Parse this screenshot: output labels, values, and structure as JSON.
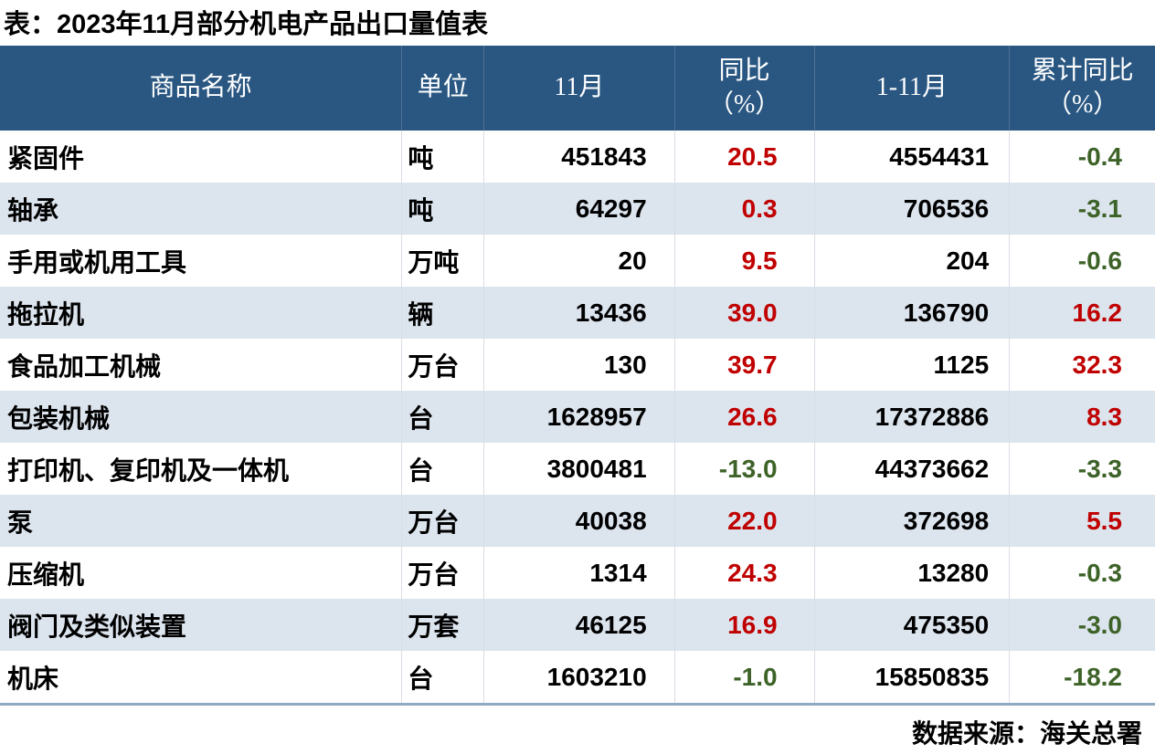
{
  "title": "表：2023年11月部分机电产品出口量值表",
  "source": "数据来源：海关总署",
  "colors": {
    "header_bg": "#2A5782",
    "header_text": "#FFFFFF",
    "alt_row_bg": "#DCE4EE",
    "positive_value": "#C00000",
    "negative_value": "#3E6328",
    "bottom_rule": "#8FA9C2"
  },
  "table": {
    "columns": [
      {
        "label": "商品名称"
      },
      {
        "label": "单位"
      },
      {
        "label": "11月"
      },
      {
        "label": "同比",
        "sub": "（%）"
      },
      {
        "label": "1-11月"
      },
      {
        "label": "累计同比",
        "sub": "（%）"
      }
    ],
    "rows": [
      {
        "name": "紧固件",
        "unit": "吨",
        "nov": "451843",
        "yoy": "20.5",
        "jan_nov": "4554431",
        "cum_yoy": "-0.4"
      },
      {
        "name": "轴承",
        "unit": "吨",
        "nov": "64297",
        "yoy": "0.3",
        "jan_nov": "706536",
        "cum_yoy": "-3.1"
      },
      {
        "name": "手用或机用工具",
        "unit": "万吨",
        "nov": "20",
        "yoy": "9.5",
        "jan_nov": "204",
        "cum_yoy": "-0.6"
      },
      {
        "name": "拖拉机",
        "unit": "辆",
        "nov": "13436",
        "yoy": "39.0",
        "jan_nov": "136790",
        "cum_yoy": "16.2"
      },
      {
        "name": "食品加工机械",
        "unit": "万台",
        "nov": "130",
        "yoy": "39.7",
        "jan_nov": "1125",
        "cum_yoy": "32.3"
      },
      {
        "name": "包装机械",
        "unit": "台",
        "nov": "1628957",
        "yoy": "26.6",
        "jan_nov": "17372886",
        "cum_yoy": "8.3"
      },
      {
        "name": "打印机、复印机及一体机",
        "unit": "台",
        "nov": "3800481",
        "yoy": "-13.0",
        "jan_nov": "44373662",
        "cum_yoy": "-3.3"
      },
      {
        "name": "泵",
        "unit": "万台",
        "nov": "40038",
        "yoy": "22.0",
        "jan_nov": "372698",
        "cum_yoy": "5.5"
      },
      {
        "name": "压缩机",
        "unit": "万台",
        "nov": "1314",
        "yoy": "24.3",
        "jan_nov": "13280",
        "cum_yoy": "-0.3"
      },
      {
        "name": "阀门及类似装置",
        "unit": "万套",
        "nov": "46125",
        "yoy": "16.9",
        "jan_nov": "475350",
        "cum_yoy": "-3.0"
      },
      {
        "name": "机床",
        "unit": "台",
        "nov": "1603210",
        "yoy": "-1.0",
        "jan_nov": "15850835",
        "cum_yoy": "-18.2"
      }
    ]
  }
}
